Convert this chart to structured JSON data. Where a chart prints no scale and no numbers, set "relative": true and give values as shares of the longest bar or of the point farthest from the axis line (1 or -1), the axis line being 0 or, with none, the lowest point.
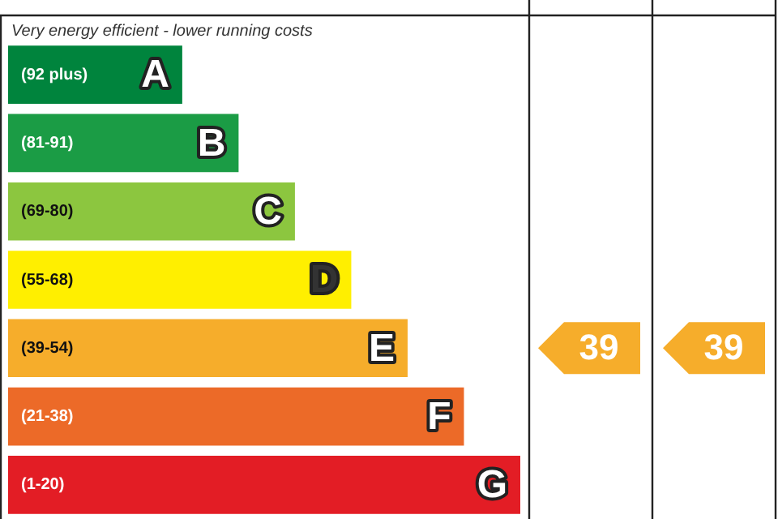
{
  "chart_data": {
    "type": "bar",
    "orientation": "horizontal",
    "relative": true,
    "categories": [
      "(92 plus)",
      "(81-91)",
      "(69-80)",
      "(55-68)",
      "(39-54)",
      "(21-38)",
      "(1-20)"
    ],
    "values": [
      0.34,
      0.45,
      0.56,
      0.67,
      0.78,
      0.89,
      1
    ],
    "colors": [
      "#00843d",
      "#1b9c45",
      "#8cc63f",
      "#ffef00",
      "#f6ad2b",
      "#ec6a28",
      "#e31d25"
    ],
    "annotations": [
      "Very energy efficient - lower running costs",
      {
        "text": "A",
        "x": 0.34,
        "y": "(92 plus)"
      },
      {
        "text": "B",
        "x": 0.45,
        "y": "(81-91)"
      },
      {
        "text": "C",
        "x": 0.56,
        "y": "(69-80)"
      },
      {
        "text": "D",
        "x": 0.67,
        "y": "(55-68)"
      },
      {
        "text": "E",
        "x": 0.78,
        "y": "(39-54)"
      },
      {
        "text": "F",
        "x": 0.89,
        "y": "(21-38)"
      },
      {
        "text": "G",
        "x": 1,
        "y": "(1-20)"
      },
      "39",
      "39"
    ],
    "legend": false
  }
}
